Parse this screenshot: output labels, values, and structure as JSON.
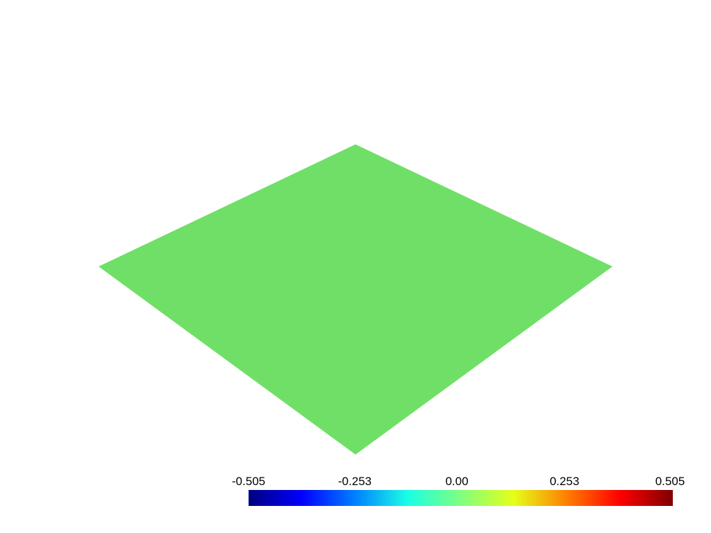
{
  "surface": {
    "color": "#70df67"
  },
  "colorbar": {
    "ticks": [
      "-0.505",
      "-0.253",
      "0.00",
      "0.253",
      "0.505"
    ],
    "colormap": [
      "#00007f",
      "#0000ff",
      "#007fff",
      "#19ffe5",
      "#7fff7f",
      "#e5ff19",
      "#ff7f00",
      "#ff0000",
      "#7f0000"
    ]
  }
}
